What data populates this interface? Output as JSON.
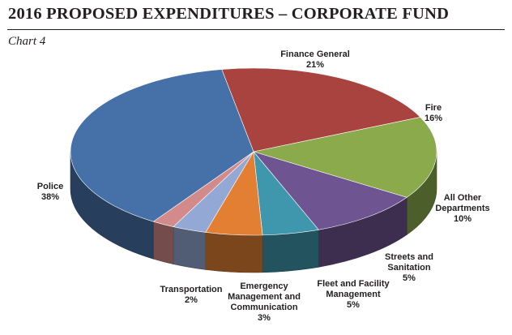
{
  "header": {
    "title": "2016 PROPOSED EXPENDITURES – CORPORATE FUND",
    "chart_caption": "Chart 4"
  },
  "chart_data": {
    "type": "pie",
    "title": "2016 PROPOSED EXPENDITURES – CORPORATE FUND",
    "subtitle": "Chart 4",
    "style": "3d",
    "slices": [
      {
        "label": "Finance General",
        "value": 21,
        "value_label": "21%",
        "color": "#a84340"
      },
      {
        "label": "Fire",
        "value": 16,
        "value_label": "16%",
        "color": "#8aaa4c"
      },
      {
        "label": "All Other Departments",
        "value": 10,
        "value_label": "10%",
        "color": "#6e5490"
      },
      {
        "label": "Streets and Sanitation",
        "value": 5,
        "value_label": "5%",
        "color": "#3f97ad"
      },
      {
        "label": "Fleet and Facility Management",
        "value": 5,
        "value_label": "5%",
        "color": "#e27f33"
      },
      {
        "label": "Emergency Management and Communication",
        "value": 3,
        "value_label": "3%",
        "color": "#93a8d4"
      },
      {
        "label": "Transportation",
        "value": 2,
        "value_label": "2%",
        "color": "#d28b8a"
      },
      {
        "label": "Police",
        "value": 38,
        "value_label": "38%",
        "color": "#4670a8"
      }
    ]
  }
}
